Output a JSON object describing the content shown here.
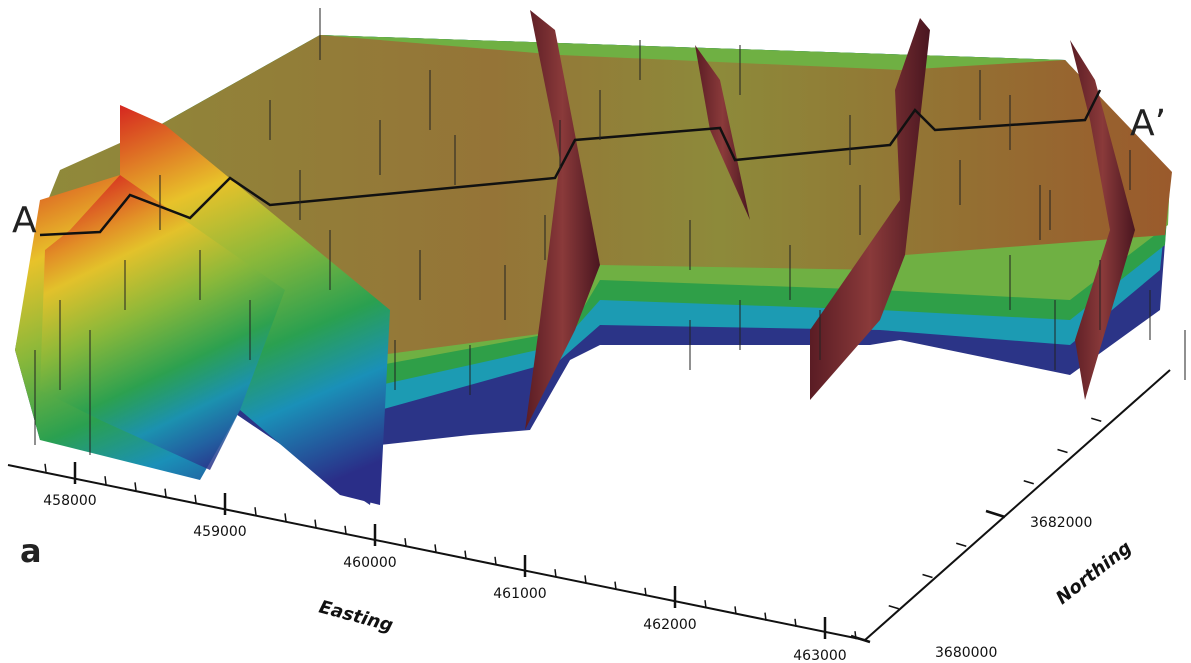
{
  "panel_label": "a",
  "section_labels": {
    "start": "A",
    "end": "A’"
  },
  "axes": {
    "easting": {
      "title": "Easting",
      "ticks": [
        458000,
        459000,
        460000,
        461000,
        462000,
        463000
      ]
    },
    "northing": {
      "title": "Northing",
      "ticks": [
        3680000,
        3682000
      ]
    }
  }
}
